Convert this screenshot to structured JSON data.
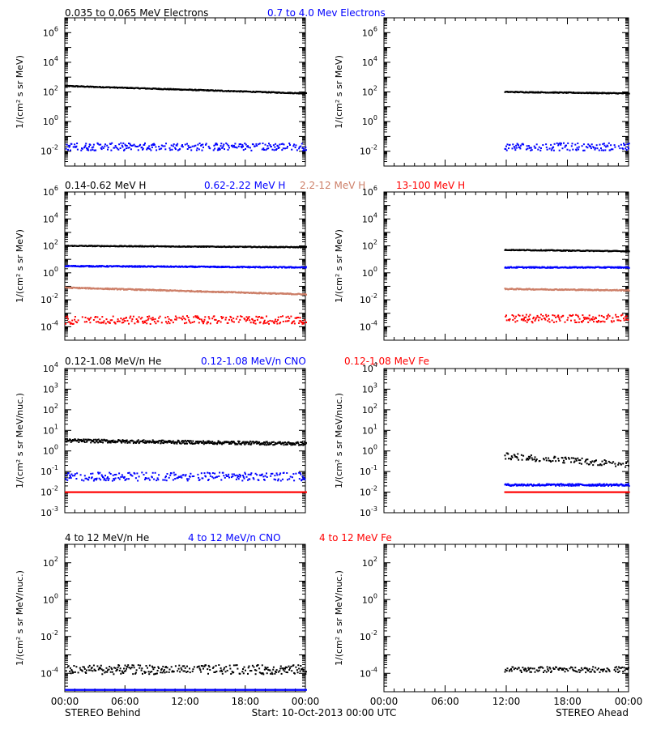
{
  "figure": {
    "footer_left": "STEREO Behind",
    "footer_center": "Start: 10-Oct-2013 00:00 UTC",
    "footer_right": "STEREO Ahead",
    "x_tick_labels": [
      "00:00",
      "06:00",
      "12:00",
      "18:00",
      "00:00"
    ]
  },
  "colors": {
    "black": "#000000",
    "blue": "#0000ff",
    "salmon": "#cd7f68",
    "red": "#ff0000"
  },
  "chart_data": [
    {
      "type": "scatter",
      "panel": "electrons-behind",
      "ylabel": "1/(cm² s sr MeV)",
      "ylim_log10": [
        -3,
        7
      ],
      "ytick_labels": [
        "10^-2",
        "10^0",
        "10^2",
        "10^4",
        "10^6"
      ],
      "x_range_hours": [
        0,
        24
      ],
      "series": [
        {
          "name": "0.035 to 0.065 MeV Electrons",
          "color": "#000000",
          "x_hours": [
            0,
            24
          ],
          "log10_start": 2.4,
          "log10_end": 1.9,
          "scatter_decades": 0.03
        },
        {
          "name": "0.7 to 4.0 Mev Electrons",
          "color": "#0000ff",
          "x_hours": [
            0,
            24
          ],
          "log10_start": -1.7,
          "log10_end": -1.7,
          "scatter_decades": 0.25
        }
      ]
    },
    {
      "type": "scatter",
      "panel": "electrons-ahead",
      "ylabel": "1/(cm² s sr MeV)",
      "ylim_log10": [
        -3,
        7
      ],
      "ytick_labels": [
        "10^-2",
        "10^0",
        "10^2",
        "10^4",
        "10^6"
      ],
      "x_range_hours": [
        0,
        24
      ],
      "series": [
        {
          "color": "#000000",
          "x_hours": [
            11.8,
            24
          ],
          "log10_start": 2.0,
          "log10_end": 1.9,
          "scatter_decades": 0.03
        },
        {
          "color": "#0000ff",
          "x_hours": [
            11.8,
            24
          ],
          "log10_start": -1.7,
          "log10_end": -1.7,
          "scatter_decades": 0.25
        }
      ]
    },
    {
      "type": "scatter",
      "panel": "protons-behind",
      "ylabel": "1/(cm² s sr MeV)",
      "ylim_log10": [
        -5,
        6
      ],
      "ytick_labels": [
        "10^-4",
        "10^-2",
        "10^0",
        "10^2",
        "10^4",
        "10^6"
      ],
      "x_range_hours": [
        0,
        24
      ],
      "series": [
        {
          "name": "0.14-0.62 MeV H",
          "color": "#000000",
          "x_hours": [
            0,
            24
          ],
          "log10_start": 2.0,
          "log10_end": 1.9,
          "scatter_decades": 0.03
        },
        {
          "name": "0.62-2.22 MeV H",
          "color": "#0000ff",
          "x_hours": [
            0,
            24
          ],
          "log10_start": 0.5,
          "log10_end": 0.4,
          "scatter_decades": 0.04
        },
        {
          "name": "2.2-12 MeV H",
          "color": "#cd7f68",
          "x_hours": [
            0,
            24
          ],
          "log10_start": -1.1,
          "log10_end": -1.6,
          "scatter_decades": 0.04
        },
        {
          "name": "13-100 MeV H",
          "color": "#ff0000",
          "x_hours": [
            0,
            24
          ],
          "log10_start": -3.5,
          "log10_end": -3.5,
          "scatter_decades": 0.3
        }
      ]
    },
    {
      "type": "scatter",
      "panel": "protons-ahead",
      "ylabel": "1/(cm² s sr MeV)",
      "ylim_log10": [
        -5,
        6
      ],
      "ytick_labels": [
        "10^-4",
        "10^-2",
        "10^0",
        "10^2",
        "10^4",
        "10^6"
      ],
      "x_range_hours": [
        0,
        24
      ],
      "series": [
        {
          "color": "#000000",
          "x_hours": [
            11.8,
            24
          ],
          "log10_start": 1.7,
          "log10_end": 1.6,
          "scatter_decades": 0.03
        },
        {
          "color": "#0000ff",
          "x_hours": [
            11.8,
            24
          ],
          "log10_start": 0.4,
          "log10_end": 0.4,
          "scatter_decades": 0.04
        },
        {
          "color": "#cd7f68",
          "x_hours": [
            11.8,
            24
          ],
          "log10_start": -1.2,
          "log10_end": -1.3,
          "scatter_decades": 0.04
        },
        {
          "color": "#ff0000",
          "x_hours": [
            11.8,
            24
          ],
          "log10_start": -3.4,
          "log10_end": -3.4,
          "scatter_decades": 0.3
        }
      ]
    },
    {
      "type": "scatter",
      "panel": "ions-lowenergy-behind",
      "ylabel": "1/(cm² s sr MeV/nuc.)",
      "ylim_log10": [
        -3,
        4
      ],
      "ytick_labels": [
        "10^-3",
        "10^-2",
        "10^-1",
        "10^0",
        "10^1",
        "10^2",
        "10^3",
        "10^4"
      ],
      "x_range_hours": [
        0,
        24
      ],
      "series": [
        {
          "name": "0.12-1.08 MeV/n He",
          "color": "#000000",
          "x_hours": [
            0,
            24
          ],
          "log10_start": 0.5,
          "log10_end": 0.35,
          "scatter_decades": 0.08
        },
        {
          "name": "0.12-1.08 MeV/n CNO",
          "color": "#0000ff",
          "x_hours": [
            0,
            24
          ],
          "log10_start": -1.25,
          "log10_end": -1.25,
          "scatter_decades": 0.2
        },
        {
          "name": "0.12-1.08 MeV Fe",
          "color": "#ff0000",
          "x_hours": [
            0,
            24
          ],
          "log10_start": -2.0,
          "log10_end": -2.0,
          "scatter_decades": 0.0
        }
      ]
    },
    {
      "type": "scatter",
      "panel": "ions-lowenergy-ahead",
      "ylabel": "1/(cm² s sr MeV/nuc.)",
      "ylim_log10": [
        -3,
        4
      ],
      "ytick_labels": [
        "10^-3",
        "10^-2",
        "10^-1",
        "10^0",
        "10^1",
        "10^2",
        "10^3",
        "10^4"
      ],
      "x_range_hours": [
        0,
        24
      ],
      "series": [
        {
          "color": "#000000",
          "x_hours": [
            11.8,
            24
          ],
          "log10_start": -0.25,
          "log10_end": -0.65,
          "scatter_decades": 0.15
        },
        {
          "color": "#0000ff",
          "x_hours": [
            11.8,
            24
          ],
          "log10_start": -1.65,
          "log10_end": -1.65,
          "scatter_decades": 0.05
        },
        {
          "color": "#ff0000",
          "x_hours": [
            11.8,
            24
          ],
          "log10_start": -2.0,
          "log10_end": -2.0,
          "scatter_decades": 0.0
        }
      ]
    },
    {
      "type": "scatter",
      "panel": "ions-highenergy-behind",
      "ylabel": "1/(cm² s sr MeV/nuc.)",
      "ylim_log10": [
        -5,
        3
      ],
      "ytick_labels": [
        "10^-4",
        "10^-2",
        "10^0",
        "10^2"
      ],
      "x_range_hours": [
        0,
        24
      ],
      "series": [
        {
          "name": "4 to 12 MeV/n He",
          "color": "#000000",
          "x_hours": [
            0,
            24
          ],
          "log10_start": -3.8,
          "log10_end": -3.8,
          "scatter_decades": 0.25
        },
        {
          "name": "4 to 12 MeV/n CNO",
          "color": "#0000ff",
          "x_hours": [
            0,
            24
          ],
          "log10_start": -4.9,
          "log10_end": -4.9,
          "scatter_decades": 0.0
        },
        {
          "name": "4 to 12 MeV Fe",
          "color": "#ff0000",
          "x_hours": [
            0,
            24
          ],
          "log10_start": -5.5,
          "log10_end": -5.5,
          "scatter_decades": 0.0
        }
      ]
    },
    {
      "type": "scatter",
      "panel": "ions-highenergy-ahead",
      "ylabel": "1/(cm² s sr MeV/nuc.)",
      "ylim_log10": [
        -5,
        3
      ],
      "ytick_labels": [
        "10^-4",
        "10^-2",
        "10^0",
        "10^2"
      ],
      "x_range_hours": [
        0,
        24
      ],
      "series": [
        {
          "color": "#000000",
          "x_hours": [
            11.8,
            24
          ],
          "log10_start": -3.8,
          "log10_end": -3.8,
          "scatter_decades": 0.15
        }
      ]
    }
  ]
}
